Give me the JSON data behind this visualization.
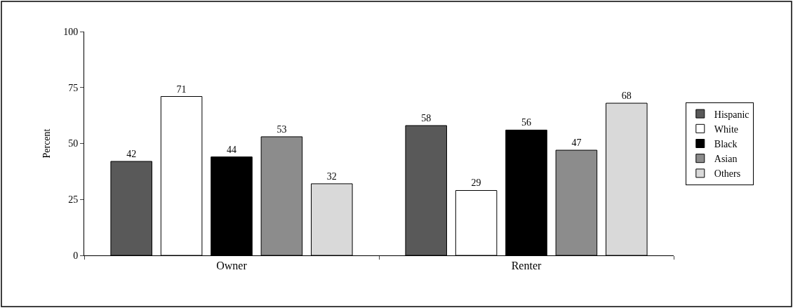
{
  "chart_data": {
    "type": "bar",
    "ylabel": "Percent",
    "categories": [
      "Owner",
      "Renter"
    ],
    "series": [
      {
        "name": "Hispanic",
        "color": "#595959",
        "values": [
          42,
          58
        ]
      },
      {
        "name": "White",
        "color": "#ffffff",
        "values": [
          71,
          29
        ]
      },
      {
        "name": "Black",
        "color": "#000000",
        "values": [
          44,
          56
        ]
      },
      {
        "name": "Asian",
        "color": "#8c8c8c",
        "values": [
          53,
          47
        ]
      },
      {
        "name": "Others",
        "color": "#d9d9d9",
        "values": [
          32,
          68
        ]
      }
    ],
    "ylim": [
      0,
      100
    ],
    "yticks": [
      0,
      25,
      50,
      75,
      100
    ],
    "legend": "right",
    "data_labels": true
  }
}
